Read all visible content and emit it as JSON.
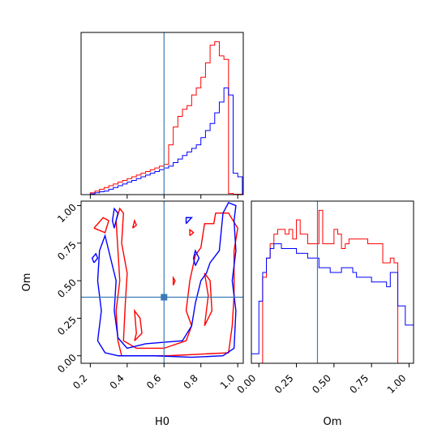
{
  "chart_data": {
    "type": "corner",
    "parameters": [
      "H0",
      "Om"
    ],
    "xlabel_h0": "H0",
    "xlabel_om": "Om",
    "ylabel_om": "Om",
    "colors": {
      "red_series": "#ff0000",
      "blue_series": "#0000ff",
      "truth": "#3a7ab5"
    },
    "truth": {
      "H0": 0.6,
      "Om": 0.39
    },
    "h0_axis": {
      "range": [
        0.15,
        1.03
      ],
      "ticks": [
        0.2,
        0.4,
        0.6,
        0.8,
        1.0
      ],
      "tick_labels": [
        "0.2",
        "0.4",
        "0.6",
        "0.8",
        "1.0"
      ]
    },
    "om_axis": {
      "range": [
        -0.05,
        1.03
      ],
      "ticks": [
        0.0,
        0.25,
        0.5,
        0.75,
        1.0
      ],
      "tick_labels": [
        "0.00",
        "0.25",
        "0.50",
        "0.75",
        "1.00"
      ]
    },
    "histograms": {
      "H0": {
        "bin_edges": [
          0.2,
          0.225,
          0.25,
          0.275,
          0.3,
          0.325,
          0.35,
          0.375,
          0.4,
          0.425,
          0.45,
          0.475,
          0.5,
          0.525,
          0.55,
          0.575,
          0.6,
          0.625,
          0.65,
          0.675,
          0.7,
          0.725,
          0.75,
          0.775,
          0.8,
          0.825,
          0.85,
          0.875,
          0.9,
          0.925,
          0.95,
          0.975,
          1.0,
          1.025
        ],
        "series": [
          {
            "color": "red",
            "counts": [
              0.5,
              1,
              1.5,
              2,
              2.5,
              3,
              3.5,
              4,
              4.5,
              5,
              5.5,
              6,
              6.5,
              7,
              7.5,
              8,
              8.5,
              14,
              19,
              22,
              24,
              25,
              28,
              30,
              33,
              37,
              42,
              43,
              39,
              38,
              0.3,
              0.1,
              0.1
            ]
          },
          {
            "color": "blue",
            "counts": [
              0.2,
              0.5,
              0.8,
              1,
              1.5,
              2,
              2.5,
              3,
              3.5,
              4,
              4.5,
              5,
              5.5,
              6,
              6.5,
              7,
              7.5,
              8,
              9,
              10,
              11,
              12,
              13,
              14,
              16,
              18,
              20,
              23,
              26,
              30,
              28,
              6,
              5
            ]
          }
        ]
      },
      "Om": {
        "bin_edges": [
          -0.05,
          0.0,
          0.025,
          0.05,
          0.075,
          0.1,
          0.125,
          0.15,
          0.175,
          0.2,
          0.225,
          0.25,
          0.275,
          0.3,
          0.325,
          0.35,
          0.375,
          0.4,
          0.425,
          0.45,
          0.475,
          0.5,
          0.525,
          0.55,
          0.575,
          0.6,
          0.625,
          0.65,
          0.675,
          0.7,
          0.725,
          0.75,
          0.775,
          0.8,
          0.825,
          0.85,
          0.875,
          0.9,
          0.925,
          0.95,
          0.975,
          1.0,
          1.03
        ],
        "series": [
          {
            "color": "red",
            "counts": [
              0,
              0,
              18,
              22,
              25,
              27,
              28,
              28,
              27,
              28,
              26,
              30,
              27,
              27,
              25,
              25,
              25,
              32,
              25,
              25,
              25,
              28,
              27,
              24,
              25,
              26,
              26,
              26,
              26,
              26,
              25,
              25,
              25,
              25,
              21,
              21,
              22,
              21,
              0,
              0,
              0,
              0
            ]
          },
          {
            "color": "blue",
            "counts": [
              2,
              13,
              19,
              22,
              24,
              25,
              25,
              24,
              24,
              24,
              24,
              23,
              23,
              23,
              22,
              22,
              22,
              20,
              20,
              20,
              19,
              19,
              19,
              20,
              20,
              20,
              19,
              18,
              18,
              18,
              18,
              17,
              17,
              17,
              17,
              16,
              19,
              19,
              12,
              12,
              8,
              8
            ]
          }
        ]
      }
    },
    "contours_2d": {
      "x_param": "H0",
      "y_param": "Om",
      "series": [
        {
          "color": "red",
          "paths": [
            [
              [
                0.37,
                0.0
              ],
              [
                0.62,
                0.0
              ],
              [
                0.78,
                0.01
              ],
              [
                0.95,
                0.02
              ],
              [
                0.97,
                0.2
              ],
              [
                0.98,
                0.4
              ],
              [
                0.98,
                0.7
              ],
              [
                1.0,
                0.85
              ],
              [
                0.95,
                0.95
              ],
              [
                0.88,
                0.95
              ],
              [
                0.87,
                0.88
              ],
              [
                0.82,
                0.88
              ],
              [
                0.8,
                0.72
              ],
              [
                0.77,
                0.67
              ],
              [
                0.74,
                0.5
              ],
              [
                0.73,
                0.4
              ],
              [
                0.72,
                0.3
              ],
              [
                0.75,
                0.2
              ],
              [
                0.72,
                0.1
              ],
              [
                0.6,
                0.05
              ],
              [
                0.45,
                0.05
              ],
              [
                0.38,
                0.1
              ],
              [
                0.39,
                0.35
              ],
              [
                0.4,
                0.55
              ],
              [
                0.37,
                0.75
              ],
              [
                0.38,
                0.95
              ],
              [
                0.36,
                0.98
              ],
              [
                0.34,
                0.9
              ],
              [
                0.35,
                0.7
              ],
              [
                0.36,
                0.5
              ],
              [
                0.34,
                0.3
              ],
              [
                0.35,
                0.1
              ],
              [
                0.37,
                0.0
              ]
            ],
            [
              [
                0.22,
                0.85
              ],
              [
                0.28,
                0.82
              ],
              [
                0.3,
                0.9
              ],
              [
                0.27,
                0.92
              ],
              [
                0.22,
                0.85
              ]
            ],
            [
              [
                0.43,
                0.85
              ],
              [
                0.44,
                0.9
              ],
              [
                0.45,
                0.87
              ],
              [
                0.43,
                0.85
              ]
            ],
            [
              [
                0.44,
                0.1
              ],
              [
                0.48,
                0.15
              ],
              [
                0.47,
                0.25
              ],
              [
                0.44,
                0.3
              ],
              [
                0.45,
                0.15
              ],
              [
                0.44,
                0.1
              ]
            ],
            [
              [
                0.82,
                0.2
              ],
              [
                0.86,
                0.3
              ],
              [
                0.85,
                0.5
              ],
              [
                0.82,
                0.55
              ],
              [
                0.84,
                0.4
              ],
              [
                0.82,
                0.2
              ]
            ],
            [
              [
                0.74,
                0.8
              ],
              [
                0.76,
                0.82
              ],
              [
                0.74,
                0.84
              ],
              [
                0.74,
                0.8
              ]
            ],
            [
              [
                0.65,
                0.47
              ],
              [
                0.66,
                0.5
              ],
              [
                0.65,
                0.52
              ],
              [
                0.65,
                0.47
              ]
            ]
          ]
        },
        {
          "color": "blue",
          "paths": [
            [
              [
                0.35,
                0.0
              ],
              [
                0.55,
                0.0
              ],
              [
                0.75,
                -0.01
              ],
              [
                0.92,
                0.0
              ],
              [
                0.98,
                0.05
              ],
              [
                0.99,
                0.3
              ],
              [
                0.97,
                0.5
              ],
              [
                0.99,
                0.7
              ],
              [
                0.98,
                0.9
              ],
              [
                0.99,
                1.0
              ],
              [
                0.95,
                1.02
              ],
              [
                0.92,
                0.95
              ],
              [
                0.9,
                0.7
              ],
              [
                0.85,
                0.62
              ],
              [
                0.83,
                0.55
              ],
              [
                0.8,
                0.5
              ],
              [
                0.77,
                0.35
              ],
              [
                0.75,
                0.2
              ],
              [
                0.7,
                0.1
              ],
              [
                0.5,
                0.08
              ],
              [
                0.4,
                0.05
              ],
              [
                0.35,
                0.12
              ],
              [
                0.33,
                0.3
              ],
              [
                0.34,
                0.5
              ],
              [
                0.31,
                0.65
              ],
              [
                0.28,
                0.8
              ],
              [
                0.25,
                0.7
              ],
              [
                0.24,
                0.5
              ],
              [
                0.26,
                0.3
              ],
              [
                0.24,
                0.1
              ],
              [
                0.28,
                0.02
              ],
              [
                0.35,
                0.0
              ]
            ],
            [
              [
                0.22,
                0.62
              ],
              [
                0.24,
                0.65
              ],
              [
                0.23,
                0.68
              ],
              [
                0.21,
                0.65
              ],
              [
                0.22,
                0.62
              ]
            ],
            [
              [
                0.33,
                0.85
              ],
              [
                0.35,
                0.95
              ],
              [
                0.33,
                0.98
              ],
              [
                0.32,
                0.9
              ],
              [
                0.33,
                0.85
              ]
            ],
            [
              [
                0.72,
                0.88
              ],
              [
                0.75,
                0.92
              ],
              [
                0.72,
                0.92
              ],
              [
                0.72,
                0.88
              ]
            ],
            [
              [
                0.77,
                0.6
              ],
              [
                0.79,
                0.65
              ],
              [
                0.77,
                0.7
              ],
              [
                0.76,
                0.65
              ],
              [
                0.77,
                0.6
              ]
            ]
          ]
        }
      ]
    }
  }
}
